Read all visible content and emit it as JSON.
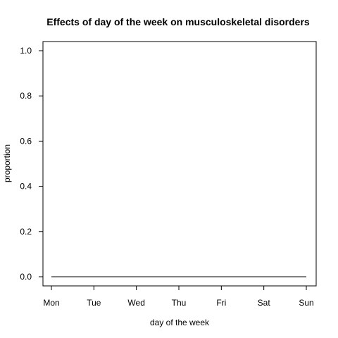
{
  "chart_data": {
    "type": "line",
    "title": "Effects of day of the week on musculoskeletal disorders",
    "xlabel": "day of the week",
    "ylabel": "proportion",
    "categories": [
      "Mon",
      "Tue",
      "Wed",
      "Thu",
      "Fri",
      "Sat",
      "Sun"
    ],
    "series": [
      {
        "values": [
          0,
          0,
          0,
          0,
          0,
          0,
          0
        ]
      }
    ],
    "ylim": [
      0,
      1
    ],
    "yticks": [
      "0.0",
      "0.2",
      "0.4",
      "0.6",
      "0.8",
      "1.0"
    ],
    "grid": false,
    "line_color": "#000000"
  }
}
